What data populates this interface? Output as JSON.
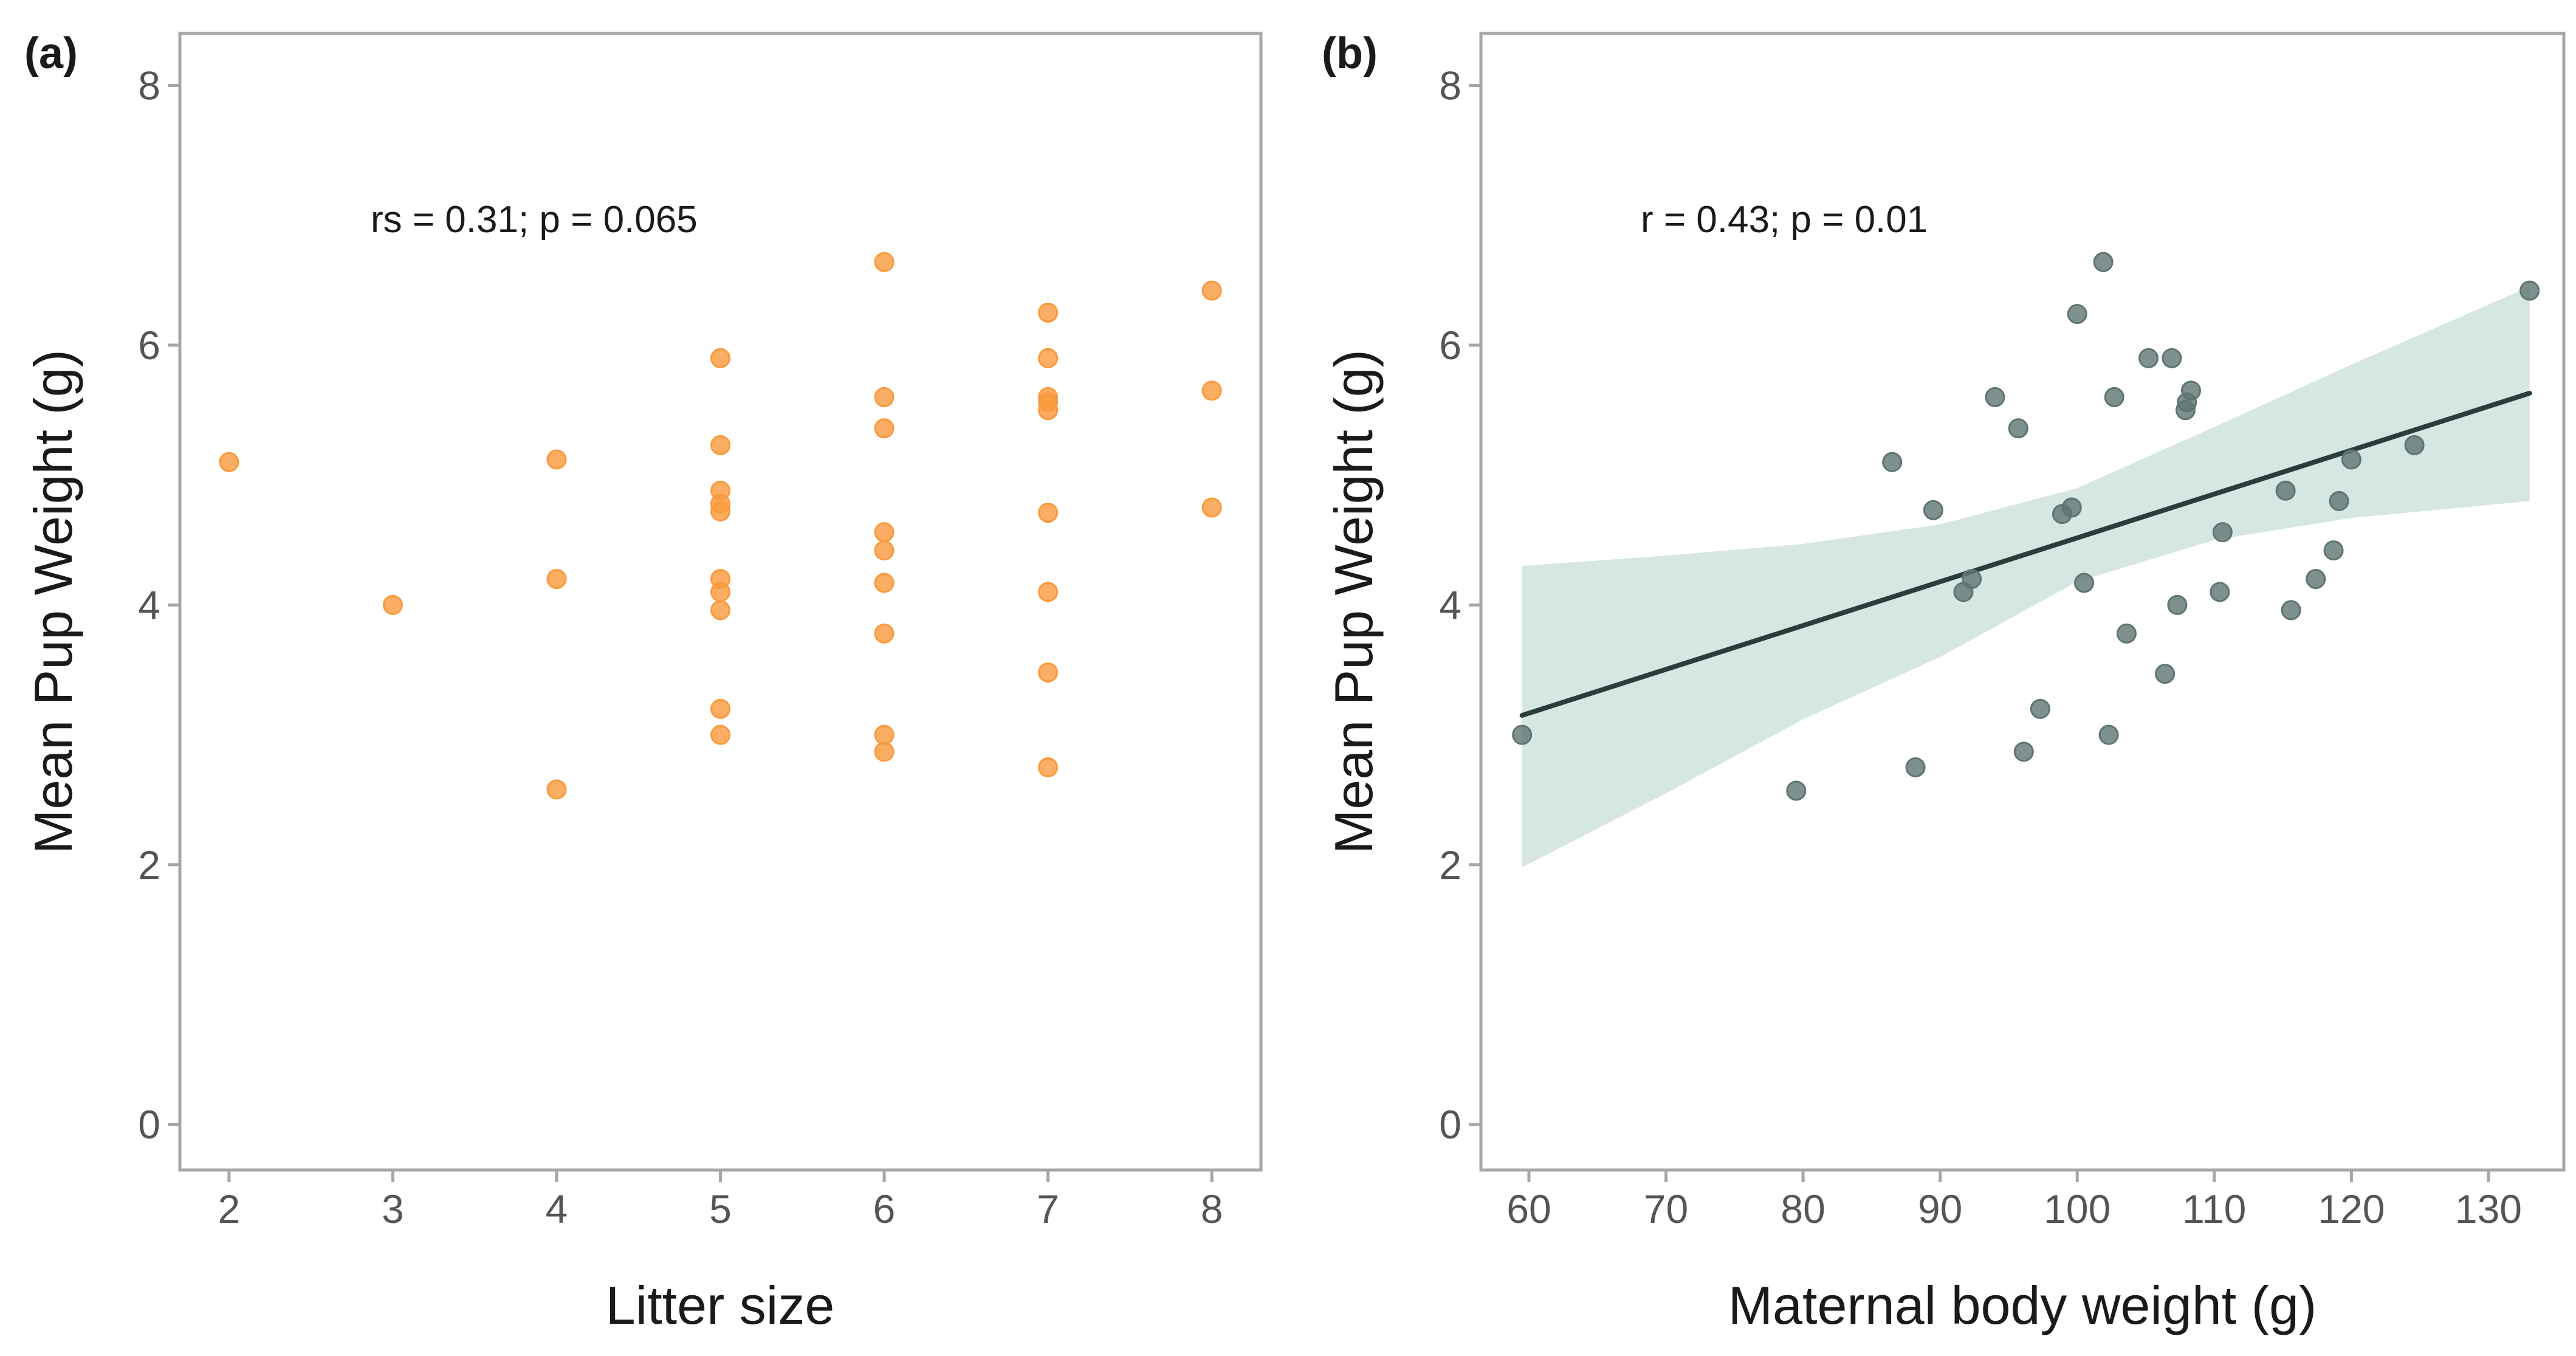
{
  "chart_data": [
    {
      "type": "scatter",
      "panel_label": "(a)",
      "xlabel": "Litter size",
      "ylabel": "Mean Pup Weight (g)",
      "xlim": [
        1.7,
        8.3
      ],
      "ylim": [
        -0.35,
        8.4
      ],
      "xticks": [
        2,
        3,
        4,
        5,
        6,
        7,
        8
      ],
      "yticks": [
        0,
        2,
        4,
        6,
        8
      ],
      "annotation": "rs = 0.31; p = 0.065",
      "point_color": "#fa9a3c",
      "points": [
        {
          "x": 2,
          "y": 5.1
        },
        {
          "x": 3,
          "y": 4.0
        },
        {
          "x": 4,
          "y": 5.12
        },
        {
          "x": 4,
          "y": 4.2
        },
        {
          "x": 4,
          "y": 2.58
        },
        {
          "x": 5,
          "y": 5.9
        },
        {
          "x": 5,
          "y": 5.23
        },
        {
          "x": 5,
          "y": 4.88
        },
        {
          "x": 5,
          "y": 4.78
        },
        {
          "x": 5,
          "y": 4.72
        },
        {
          "x": 5,
          "y": 4.2
        },
        {
          "x": 5,
          "y": 4.1
        },
        {
          "x": 5,
          "y": 3.96
        },
        {
          "x": 5,
          "y": 3.2
        },
        {
          "x": 5,
          "y": 3.0
        },
        {
          "x": 6,
          "y": 6.64
        },
        {
          "x": 6,
          "y": 5.6
        },
        {
          "x": 6,
          "y": 5.36
        },
        {
          "x": 6,
          "y": 4.56
        },
        {
          "x": 6,
          "y": 4.42
        },
        {
          "x": 6,
          "y": 4.17
        },
        {
          "x": 6,
          "y": 3.78
        },
        {
          "x": 6,
          "y": 3.0
        },
        {
          "x": 6,
          "y": 2.87
        },
        {
          "x": 7,
          "y": 6.25
        },
        {
          "x": 7,
          "y": 5.9
        },
        {
          "x": 7,
          "y": 5.6
        },
        {
          "x": 7,
          "y": 5.56
        },
        {
          "x": 7,
          "y": 5.5
        },
        {
          "x": 7,
          "y": 4.71
        },
        {
          "x": 7,
          "y": 4.1
        },
        {
          "x": 7,
          "y": 3.48
        },
        {
          "x": 7,
          "y": 2.75
        },
        {
          "x": 8,
          "y": 6.42
        },
        {
          "x": 8,
          "y": 5.65
        },
        {
          "x": 8,
          "y": 4.75
        }
      ]
    },
    {
      "type": "scatter",
      "panel_label": "(b)",
      "xlabel": "Maternal body weight (g)",
      "ylabel": "Mean Pup Weight (g)",
      "xlim": [
        56.5,
        135.5
      ],
      "ylim": [
        -0.35,
        8.4
      ],
      "xticks": [
        60,
        70,
        80,
        90,
        100,
        110,
        120,
        130
      ],
      "yticks": [
        0,
        2,
        4,
        6,
        8
      ],
      "annotation": "r = 0.43; p = 0.01",
      "point_color": "#5e7572",
      "fit_color": "#2b3d3a",
      "band_color": "#d6e6e2",
      "fit_line": {
        "x": [
          59.5,
          133
        ],
        "y": [
          3.15,
          5.63
        ]
      },
      "confidence_band": {
        "x": [
          59.5,
          70,
          80,
          90,
          100,
          110,
          120,
          133
        ],
        "upper": [
          4.3,
          4.38,
          4.47,
          4.62,
          4.9,
          5.37,
          5.85,
          6.45
        ],
        "lower": [
          1.98,
          2.55,
          3.12,
          3.6,
          4.18,
          4.5,
          4.67,
          4.8
        ]
      },
      "points": [
        {
          "x": 59.5,
          "y": 3.0
        },
        {
          "x": 79.5,
          "y": 2.57
        },
        {
          "x": 86.5,
          "y": 5.1
        },
        {
          "x": 88.2,
          "y": 2.75
        },
        {
          "x": 89.5,
          "y": 4.73
        },
        {
          "x": 91.7,
          "y": 4.1
        },
        {
          "x": 92.3,
          "y": 4.2
        },
        {
          "x": 94,
          "y": 5.6
        },
        {
          "x": 95.7,
          "y": 5.36
        },
        {
          "x": 96.1,
          "y": 2.87
        },
        {
          "x": 97.3,
          "y": 3.2
        },
        {
          "x": 98.9,
          "y": 4.7
        },
        {
          "x": 99.6,
          "y": 4.75
        },
        {
          "x": 100,
          "y": 6.24
        },
        {
          "x": 100.5,
          "y": 4.17
        },
        {
          "x": 101.9,
          "y": 6.64
        },
        {
          "x": 102.3,
          "y": 3.0
        },
        {
          "x": 102.7,
          "y": 5.6
        },
        {
          "x": 103.6,
          "y": 3.78
        },
        {
          "x": 105.2,
          "y": 5.9
        },
        {
          "x": 106.4,
          "y": 3.47
        },
        {
          "x": 106.9,
          "y": 5.9
        },
        {
          "x": 107.3,
          "y": 4.0
        },
        {
          "x": 107.9,
          "y": 5.5
        },
        {
          "x": 108,
          "y": 5.56
        },
        {
          "x": 108.3,
          "y": 5.65
        },
        {
          "x": 110.4,
          "y": 4.1
        },
        {
          "x": 110.6,
          "y": 4.56
        },
        {
          "x": 115.2,
          "y": 4.88
        },
        {
          "x": 115.6,
          "y": 3.96
        },
        {
          "x": 117.4,
          "y": 4.2
        },
        {
          "x": 118.7,
          "y": 4.42
        },
        {
          "x": 119.1,
          "y": 4.8
        },
        {
          "x": 120,
          "y": 5.12
        },
        {
          "x": 124.6,
          "y": 5.23
        },
        {
          "x": 133,
          "y": 6.42
        }
      ]
    }
  ]
}
